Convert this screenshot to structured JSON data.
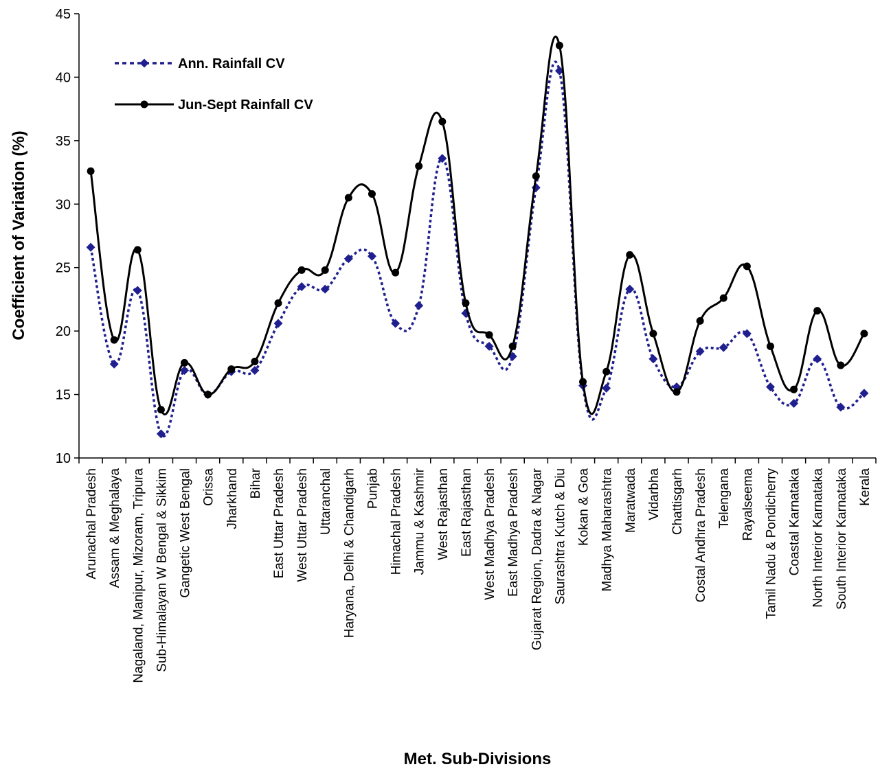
{
  "chart_data": {
    "type": "line",
    "title": "",
    "xlabel": "Met. Sub-Divisions",
    "ylabel": "Coefficient of Variation (%)",
    "ylim": [
      10,
      45
    ],
    "yticks": [
      10,
      15,
      20,
      25,
      30,
      35,
      40,
      45
    ],
    "grid": false,
    "legend_position": "top-left",
    "categories": [
      "Arunachal Pradesh",
      "Assam & Meghalaya",
      "Nagaland, Manipur, Mizoram, Tripura",
      "Sub-Himalayan W Bengal & Sikkim",
      "Gangetic West Bengal",
      "Orissa",
      "Jharkhand",
      "Bihar",
      "East Uttar Pradesh",
      "West Uttar Pradesh",
      "Uttaranchal",
      "Haryana, Delhi & Chandigarh",
      "Punjab",
      "Himachal Pradesh",
      "Jammu & Kashmir",
      "West Rajasthan",
      "East  Rajasthan",
      "West Madhya Pradesh",
      "East Madhya Pradesh",
      "Gujarat Region, Dadra & Nagar",
      "Saurashtra Kutch & Diu",
      "Kokan & Goa",
      "Madhya Maharashtra",
      "Maratwada",
      "Vidarbha",
      "Chattisgarh",
      "Costal Andhra Pradesh",
      "Telengana",
      "Rayalseema",
      "Tamil Nadu & Pondicherry",
      "Coastal Karnataka",
      "North Interior Karnataka",
      "South Interior Karnataka",
      "Kerala"
    ],
    "series": [
      {
        "name": "Ann. Rainfall CV",
        "color": "#1f1f8f",
        "style": "dotted",
        "marker": "diamond",
        "values": [
          26.6,
          17.4,
          23.2,
          11.9,
          16.9,
          15.0,
          16.8,
          16.9,
          20.6,
          23.5,
          23.3,
          25.7,
          25.9,
          20.6,
          22.0,
          33.6,
          21.4,
          18.8,
          18.0,
          31.3,
          40.5,
          15.7,
          15.5,
          23.3,
          17.8,
          15.6,
          18.4,
          18.7,
          19.8,
          15.6,
          14.3,
          17.8,
          14.0,
          15.1
        ]
      },
      {
        "name": "Jun-Sept Rainfall CV",
        "color": "#000000",
        "style": "solid",
        "marker": "circle",
        "values": [
          32.6,
          19.3,
          26.4,
          13.8,
          17.5,
          15.0,
          17.0,
          17.6,
          22.2,
          24.8,
          24.8,
          30.5,
          30.8,
          24.6,
          33.0,
          36.5,
          22.2,
          19.7,
          18.8,
          32.2,
          42.5,
          16.0,
          16.8,
          26.0,
          19.8,
          15.2,
          20.8,
          22.6,
          25.1,
          18.8,
          15.4,
          21.6,
          17.3,
          19.8
        ]
      }
    ]
  }
}
